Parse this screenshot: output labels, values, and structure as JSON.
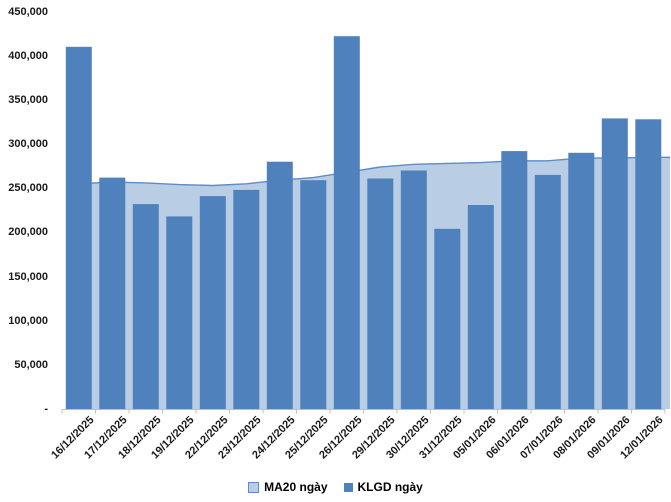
{
  "chart_data": {
    "type": "bar",
    "title": "",
    "xlabel": "",
    "ylabel": "",
    "categories": [
      "16/12/2025",
      "17/12/2025",
      "18/12/2025",
      "19/12/2025",
      "22/12/2025",
      "23/12/2025",
      "24/12/2025",
      "25/12/2025",
      "26/12/2025",
      "29/12/2025",
      "30/12/2025",
      "31/12/2025",
      "05/01/2026",
      "06/01/2026",
      "07/01/2026",
      "08/01/2026",
      "09/01/2026",
      "12/01/2026"
    ],
    "series": [
      {
        "name": "MA20 ngày",
        "type": "area",
        "values": [
          255000,
          257000,
          256000,
          254000,
          253000,
          255000,
          259000,
          262000,
          268000,
          274000,
          277000,
          278000,
          279000,
          281000,
          281000,
          284000,
          284000,
          285000
        ]
      },
      {
        "name": "KLGD ngày",
        "type": "bar",
        "values": [
          410000,
          262000,
          232000,
          218000,
          241000,
          248000,
          280000,
          259000,
          422000,
          261000,
          270000,
          204000,
          231000,
          292000,
          265000,
          290000,
          329000,
          328000
        ]
      }
    ],
    "ylim": [
      0,
      450000
    ],
    "y_ticks": {
      "values": [
        450000,
        400000,
        350000,
        300000,
        250000,
        200000,
        150000,
        100000,
        50000,
        0
      ],
      "labels": [
        "450,000",
        "400,000",
        "350,000",
        "300,000",
        "250,000",
        "200,000",
        "150,000",
        "100,000",
        "50,000",
        "-"
      ]
    },
    "grid": false,
    "legend_position": "bottom"
  },
  "colors": {
    "bar_fill": "#4F81BD",
    "area_fill": "#B9CDE5",
    "area_line": "#5B8DC8",
    "axis_line": "#BFBFBF",
    "text": "#1a1a1a",
    "background": "#ffffff"
  }
}
